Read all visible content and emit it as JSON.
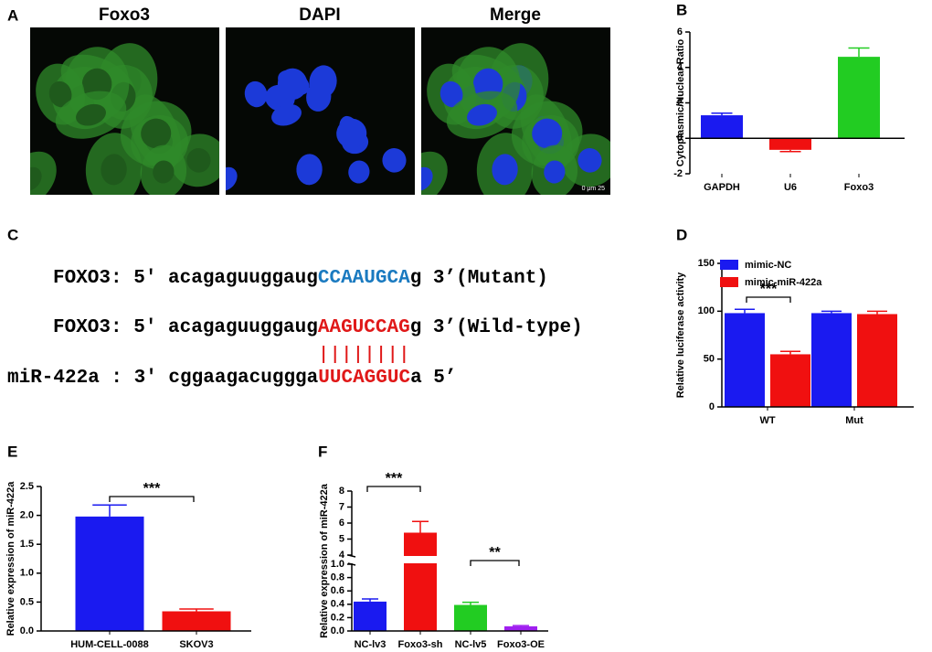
{
  "panel_a": {
    "label": "A",
    "titles": [
      "Foxo3",
      "DAPI",
      "Merge"
    ],
    "scale_bar": "0     μm     25"
  },
  "panel_c": {
    "label": "C",
    "lines": [
      {
        "prefix": "FOXO3: 5' acagaguuggaug",
        "site": "CCAAUGCA",
        "suffix": "g 3’(Mutant)"
      },
      {
        "prefix": "FOXO3: 5' acagaguuggaug",
        "site": "AAGUCCAG",
        "suffix": "g 3’(Wild-type)"
      },
      {
        "prefix": "miR-422a : 3' cggaagacuggga",
        "site": "UUCAGGUC",
        "suffix": "a 5’"
      }
    ]
  },
  "chart_data": [
    {
      "type": "bar",
      "panel": "B",
      "y_label": "Cytoplasmic/Nuclear Ratio",
      "categories": [
        "GAPDH",
        "U6",
        "Foxo3"
      ],
      "values": [
        1.3,
        -0.65,
        4.6
      ],
      "errors": [
        0.12,
        0.1,
        0.5
      ],
      "colors": [
        "#1a1af0",
        "#f01010",
        "#22cc22"
      ],
      "ylim": [
        -2,
        6
      ],
      "yticks": [
        -2,
        0,
        2,
        4,
        6
      ]
    },
    {
      "type": "grouped_bar",
      "panel": "D",
      "y_label": "Relative luciferase activity",
      "categories": [
        "WT",
        "Mut"
      ],
      "series": [
        {
          "name": "mimic-NC",
          "color": "#1a1af0",
          "values": [
            98,
            98
          ],
          "errors": [
            4,
            2
          ]
        },
        {
          "name": "mimic-miR-422a",
          "color": "#f01010",
          "values": [
            55,
            97
          ],
          "errors": [
            3,
            3
          ]
        }
      ],
      "ylim": [
        0,
        150
      ],
      "yticks": [
        0,
        50,
        100,
        150
      ],
      "annotations": [
        "***"
      ]
    },
    {
      "type": "bar",
      "panel": "E",
      "y_label": "Relative expression of miR-422a",
      "categories": [
        "HUM-CELL-0088",
        "SKOV3"
      ],
      "values": [
        1.98,
        0.34
      ],
      "errors": [
        0.2,
        0.04
      ],
      "colors": [
        "#1a1af0",
        "#f01010"
      ],
      "ylim": [
        0,
        2.5
      ],
      "yticks": [
        {
          "value": 0,
          "label": "0.0"
        },
        0.5,
        {
          "value": 1,
          "label": "1.0"
        },
        1.5,
        {
          "value": 2,
          "label": "2.0"
        },
        2.5
      ],
      "annotations": [
        "***"
      ]
    },
    {
      "type": "bar",
      "panel": "F",
      "y_label": "Relative expression of miR-422a",
      "categories": [
        "NC-lv3",
        "Foxo3-sh",
        "NC-lv5",
        "Foxo3-OE"
      ],
      "values": [
        0.44,
        5.4,
        0.39,
        0.07
      ],
      "errors": [
        0.04,
        0.7,
        0.04,
        0.01
      ],
      "colors": [
        "#1a1af0",
        "#f01010",
        "#22cc22",
        "#a020f0"
      ],
      "ylim": [
        0,
        8
      ],
      "ybreak": [
        1,
        4
      ],
      "yticks": [
        {
          "value": 0,
          "label": "0.0"
        },
        0.2,
        0.4,
        0.6,
        0.8,
        {
          "value": 1,
          "label": "1.0"
        },
        4,
        5,
        6,
        7,
        8
      ],
      "annotations": [
        "***",
        "**"
      ]
    }
  ]
}
